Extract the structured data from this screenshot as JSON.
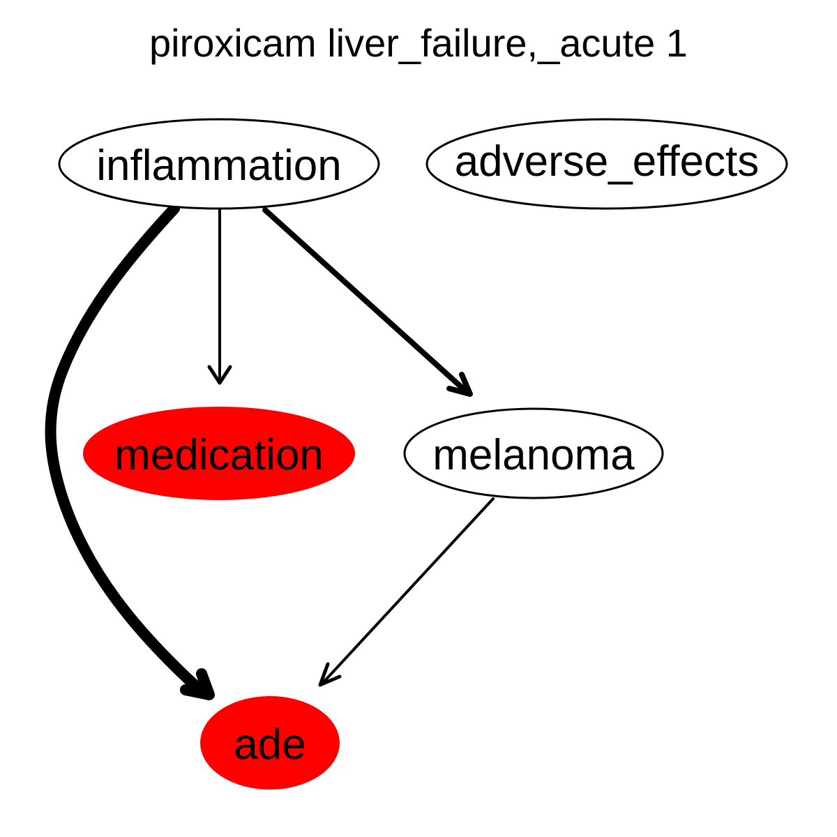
{
  "title": "piroxicam liver_failure,_acute 1",
  "colors": {
    "highlight": "#ff0000",
    "default_fill": "#ffffff",
    "stroke": "#000000"
  },
  "nodes": [
    {
      "id": "inflammation",
      "label": "inflammation",
      "highlighted": false
    },
    {
      "id": "adverse_effects",
      "label": "adverse_effects",
      "highlighted": false
    },
    {
      "id": "medication",
      "label": "medication",
      "highlighted": true
    },
    {
      "id": "melanoma",
      "label": "melanoma",
      "highlighted": false
    },
    {
      "id": "ade",
      "label": "ade",
      "highlighted": true
    }
  ],
  "edges": [
    {
      "from": "inflammation",
      "to": "ade"
    },
    {
      "from": "inflammation",
      "to": "medication"
    },
    {
      "from": "inflammation",
      "to": "melanoma"
    },
    {
      "from": "melanoma",
      "to": "ade"
    }
  ]
}
